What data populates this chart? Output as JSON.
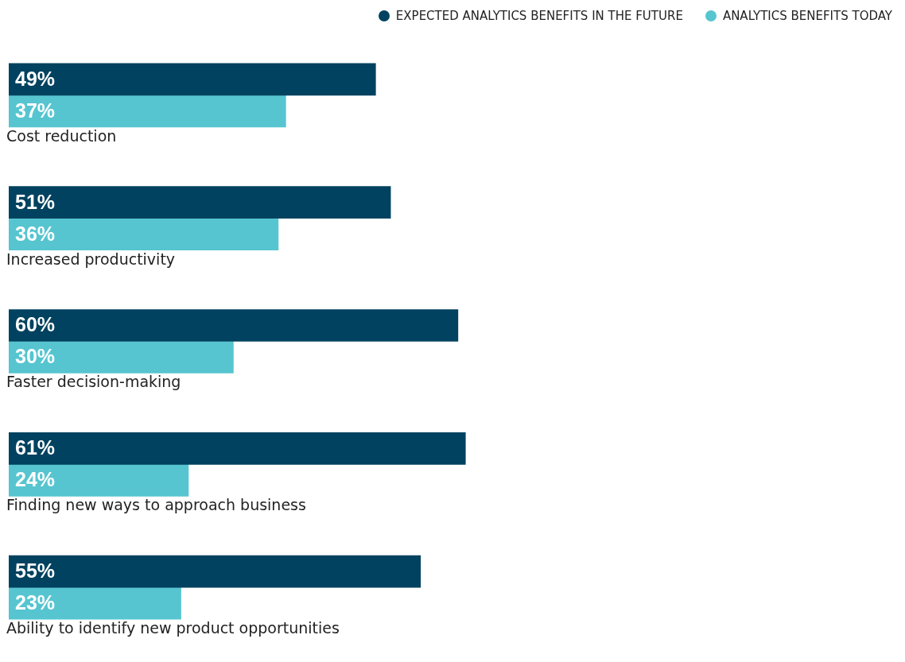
{
  "chart_data": {
    "type": "bar",
    "orientation": "horizontal",
    "categories": [
      "Cost reduction",
      "Increased productivity",
      "Faster decision-making",
      "Finding new ways to approach business",
      "Ability to identify new product opportunities"
    ],
    "series": [
      {
        "name": "EXPECTED ANALYTICS BENEFITS IN THE FUTURE",
        "color": "#00425f",
        "values": [
          49,
          51,
          60,
          61,
          55
        ],
        "value_labels": [
          "49%",
          "51%",
          "60%",
          "61%",
          "55%"
        ]
      },
      {
        "name": "ANALYTICS BENEFITS TODAY",
        "color": "#56c5d0",
        "values": [
          37,
          36,
          30,
          24,
          23
        ],
        "value_labels": [
          "37%",
          "36%",
          "30%",
          "24%",
          "23%"
        ]
      }
    ],
    "legend": "top right"
  }
}
